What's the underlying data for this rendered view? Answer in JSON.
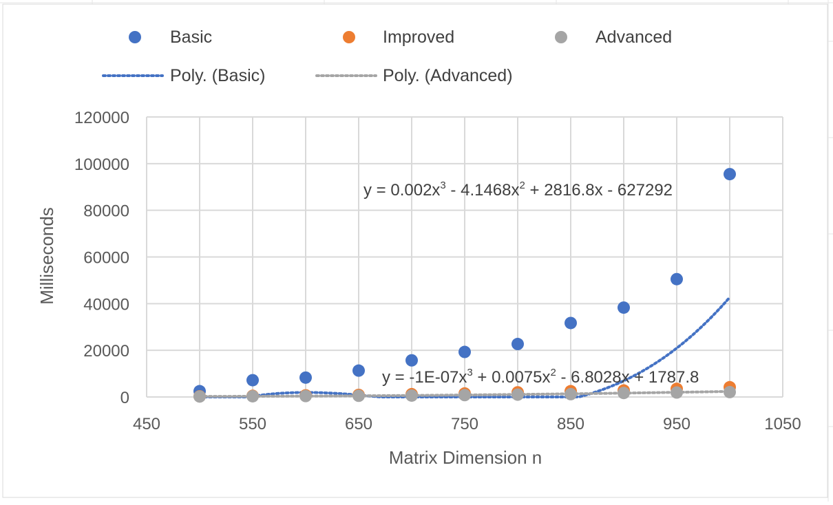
{
  "chart_data": {
    "type": "scatter",
    "title": "",
    "xlabel": "Matrix Dimension n",
    "ylabel": "Milliseconds",
    "xlim": [
      450,
      1050
    ],
    "ylim": [
      0,
      120000
    ],
    "xticks": [
      450,
      550,
      650,
      750,
      850,
      950,
      1050
    ],
    "xtick_labels": [
      "450",
      "550",
      "650",
      "750",
      "850",
      "950",
      "1050"
    ],
    "yticks": [
      0,
      20000,
      40000,
      60000,
      80000,
      100000,
      120000
    ],
    "ytick_labels": [
      "0",
      "20000",
      "40000",
      "60000",
      "80000",
      "100000",
      "120000"
    ],
    "x_grid_values": [
      450,
      500,
      550,
      600,
      650,
      700,
      750,
      800,
      850,
      900,
      950,
      1000,
      1050
    ],
    "grid": true,
    "legend_position": "top",
    "series": [
      {
        "name": "Basic",
        "color": "#4472C4",
        "x": [
          500,
          550,
          600,
          650,
          700,
          750,
          800,
          850,
          900,
          950,
          1000
        ],
        "y": [
          2500,
          7200,
          8300,
          11300,
          15700,
          19300,
          22700,
          31700,
          38300,
          50500,
          95500
        ]
      },
      {
        "name": "Improved",
        "color": "#ED7D31",
        "x": [
          500,
          550,
          600,
          650,
          700,
          750,
          800,
          850,
          900,
          950,
          1000
        ],
        "y": [
          300,
          500,
          700,
          900,
          1200,
          1500,
          2000,
          2500,
          2800,
          3500,
          4200
        ]
      },
      {
        "name": "Advanced",
        "color": "#A5A5A5",
        "x": [
          500,
          550,
          600,
          650,
          700,
          750,
          800,
          850,
          900,
          950,
          1000
        ],
        "y": [
          200,
          300,
          400,
          500,
          600,
          800,
          1000,
          1200,
          1700,
          1900,
          2100
        ]
      }
    ],
    "trendlines": [
      {
        "name": "Poly. (Basic)",
        "color": "#4472C4",
        "coefficients": [
          0.002,
          -4.1468,
          2816.8,
          -627292
        ],
        "x_range": [
          500,
          1000
        ],
        "equation_parts": [
          "y = 0.002x",
          "3",
          " - 4.1468x",
          "2",
          " + 2816.8x - 627292"
        ]
      },
      {
        "name": "Poly. (Advanced)",
        "color": "#A5A5A5",
        "coefficients": [
          -1e-07,
          0.0075,
          -6.8028,
          1787.8
        ],
        "x_range": [
          500,
          1000
        ],
        "equation_parts": [
          "y = -1E-07x",
          "3",
          " + 0.0075x",
          "2",
          " - 6.8028x + 1787.8"
        ]
      }
    ],
    "legend": [
      {
        "label": "Basic",
        "kind": "marker",
        "color": "#4472C4"
      },
      {
        "label": "Improved",
        "kind": "marker",
        "color": "#ED7D31"
      },
      {
        "label": "Advanced",
        "kind": "marker",
        "color": "#A5A5A5"
      },
      {
        "label": "Poly. (Basic)",
        "kind": "dotted-line",
        "color": "#4472C4"
      },
      {
        "label": "Poly. (Advanced)",
        "kind": "dotted-line",
        "color": "#A5A5A5"
      }
    ]
  }
}
